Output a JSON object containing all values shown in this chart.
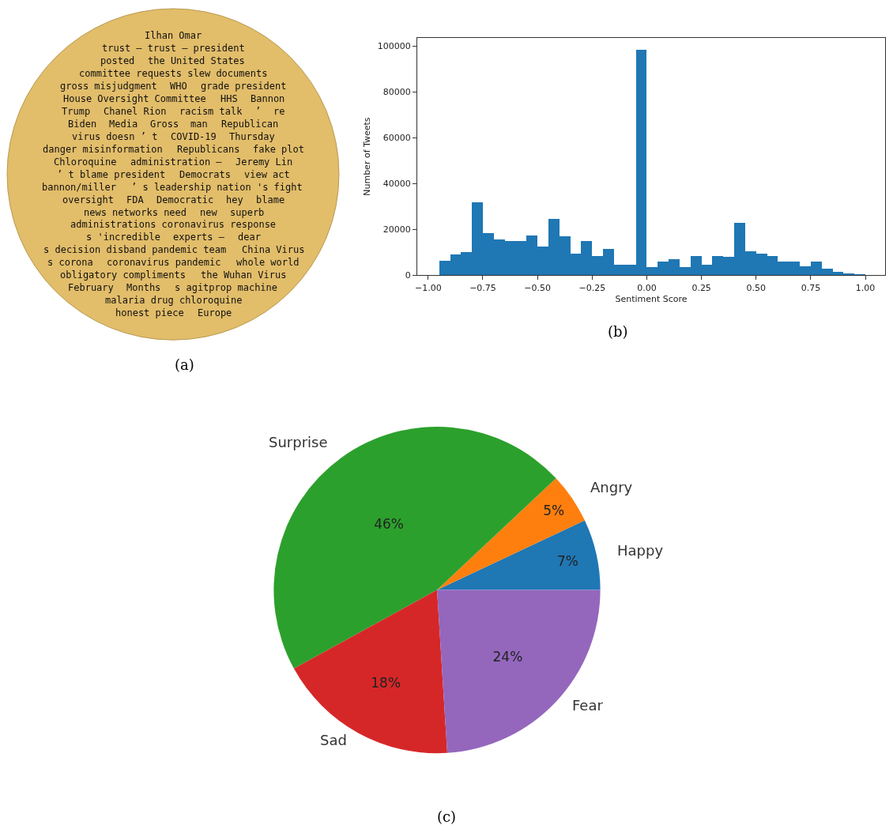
{
  "chart_data": [
    {
      "type": "other",
      "color": "#e2bd6a",
      "annotations": [
        "Ilhan Omar",
        "trust — trust — president",
        "posted",
        "the United States",
        "committee requests slew documents",
        "gross misjudgment",
        "WHO",
        "grade president",
        "House Oversight Committee",
        "HHS",
        "Bannon",
        "Trump",
        "Chanel Rion",
        "racism talk",
        "’",
        "re",
        "Biden",
        "Media",
        "Gross",
        "man",
        "Republican",
        "virus doesn ’ t",
        "COVID-19",
        "Thursday",
        "danger misinformation",
        "Republicans",
        "fake plot",
        "Chloroquine",
        "administration —",
        "Jeremy Lin",
        "’ t blame president",
        "Democrats",
        "view act",
        "bannon/miller",
        "’ s leadership nation 's fight",
        "oversight",
        "FDA",
        "Democratic",
        "hey",
        "blame",
        "news networks need",
        "new",
        "superb",
        "administrations coronavirus response",
        "s 'incredible",
        "experts —",
        "dear",
        "s decision disband pandemic team",
        "China Virus",
        "s corona",
        "coronavirus pandemic",
        "whole world",
        "obligatory compliments",
        "the Wuhan Virus",
        "February",
        "Months",
        "s agitprop machine",
        "malaria drug chloroquine",
        "honest piece",
        "Europe",
        "(a)"
      ]
    },
    {
      "type": "histogram",
      "xlabel": "Sentiment Score",
      "ylabel": "Number of Tweets",
      "color": "#1f77b4",
      "bins": [
        -0.95,
        -0.9,
        -0.85,
        -0.8,
        -0.75,
        -0.7,
        -0.65,
        -0.6,
        -0.55,
        -0.5,
        -0.45,
        -0.4,
        -0.35,
        -0.3,
        -0.25,
        -0.2,
        -0.15,
        -0.1,
        -0.05,
        0.0,
        0.05,
        0.1,
        0.15,
        0.2,
        0.25,
        0.3,
        0.35,
        0.4,
        0.45,
        0.5,
        0.55,
        0.6,
        0.65,
        0.7,
        0.75,
        0.8,
        0.85,
        0.9,
        0.95,
        1.0
      ],
      "values": [
        6500,
        9000,
        10000,
        32000,
        18500,
        15500,
        15000,
        15000,
        17500,
        12500,
        24500,
        17000,
        9500,
        15000,
        8500,
        11500,
        4500,
        4500,
        98500,
        3500,
        6000,
        7000,
        3500,
        8500,
        4500,
        8500,
        8000,
        23000,
        10500,
        9500,
        8500,
        6000,
        6000,
        4000,
        6000,
        3000,
        1500,
        1000,
        300
      ],
      "xlim": [
        -1.05,
        1.09
      ],
      "ylim": [
        0,
        103500
      ],
      "xticks": [
        {
          "value": -1.0,
          "label": "−1.00"
        },
        {
          "value": -0.75,
          "label": "−0.75"
        },
        {
          "value": -0.5,
          "label": "−0.50"
        },
        {
          "value": -0.25,
          "label": "−0.25"
        },
        {
          "value": 0.0,
          "label": "0.00"
        },
        {
          "value": 0.25,
          "label": "0.25"
        },
        {
          "value": 0.5,
          "label": "0.50"
        },
        {
          "value": 0.75,
          "label": "0.75"
        },
        {
          "value": 1.0,
          "label": "1.00"
        }
      ],
      "yticks": [
        0,
        20000,
        40000,
        60000,
        80000,
        100000
      ],
      "annotations": [
        "(b)"
      ]
    },
    {
      "type": "pie",
      "categories": [
        "Happy",
        "Angry",
        "Surprise",
        "Sad",
        "Fear"
      ],
      "values": [
        7,
        5,
        46,
        18,
        24
      ],
      "colors": [
        "#1f77b4",
        "#ff7f0e",
        "#2ca02c",
        "#d62728",
        "#9467bd"
      ],
      "value_labels": [
        "7%",
        "5%",
        "46%",
        "18%",
        "24%"
      ],
      "annotations": [
        "(c)"
      ]
    }
  ]
}
